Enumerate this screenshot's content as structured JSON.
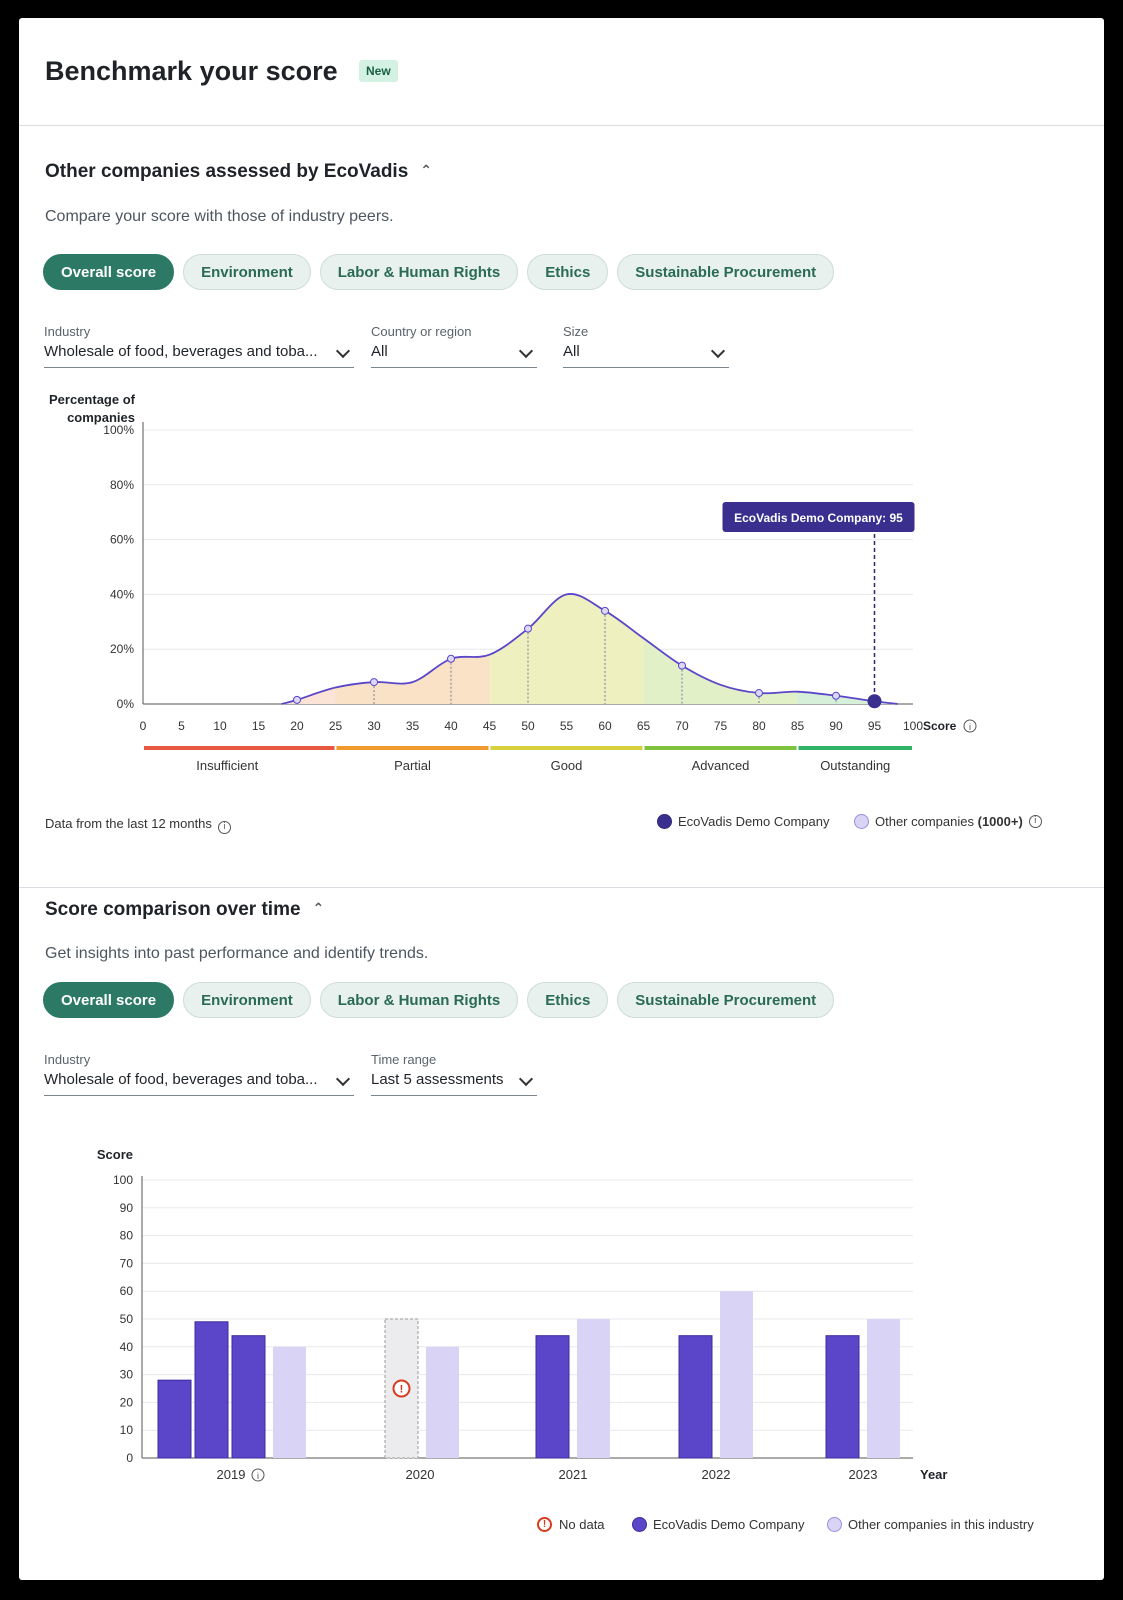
{
  "header": {
    "title": "Benchmark your score",
    "badge": "New"
  },
  "distribution_section": {
    "title": "Other companies assessed by EcoVadis",
    "subtitle": "Compare your score with those of industry peers.",
    "tabs": [
      "Overall score",
      "Environment",
      "Labor & Human Rights",
      "Ethics",
      "Sustainable Procurement"
    ],
    "active_tab": "Overall score",
    "filters": {
      "industry": {
        "label": "Industry",
        "value": "Wholesale of food, beverages and toba..."
      },
      "country": {
        "label": "Country or region",
        "value": "All"
      },
      "size": {
        "label": "Size",
        "value": "All"
      }
    },
    "data_note": "Data from the last 12 months",
    "legend": {
      "company": "EcoVadis Demo Company",
      "others_prefix": "Other companies",
      "others_count": "(1000+)"
    }
  },
  "time_section": {
    "title": "Score comparison over time",
    "subtitle": "Get insights into past performance and identify trends.",
    "tabs": [
      "Overall score",
      "Environment",
      "Labor & Human Rights",
      "Ethics",
      "Sustainable Procurement"
    ],
    "active_tab": "Overall score",
    "filters": {
      "industry": {
        "label": "Industry",
        "value": "Wholesale of food, beverages and toba..."
      },
      "time_range": {
        "label": "Time range",
        "value": "Last 5 assessments"
      }
    },
    "legend": {
      "no_data": "No data",
      "company": "EcoVadis Demo Company",
      "others": "Other companies in this industry"
    }
  },
  "chart_data": [
    {
      "type": "area",
      "ylabel": "Percentage of companies",
      "xlabel": "Score",
      "x_ticks": [
        0,
        5,
        10,
        15,
        20,
        25,
        30,
        35,
        40,
        45,
        50,
        55,
        60,
        65,
        70,
        75,
        80,
        85,
        90,
        95,
        100
      ],
      "y_ticks": [
        "0%",
        "20%",
        "40%",
        "60%",
        "80%",
        "100%"
      ],
      "xlim": [
        0,
        100
      ],
      "ylim": [
        0,
        100
      ],
      "grid": true,
      "curve": {
        "x": [
          18,
          20,
          25,
          30,
          35,
          40,
          45,
          50,
          55,
          60,
          65,
          70,
          75,
          80,
          85,
          90,
          95,
          98
        ],
        "y": [
          0,
          1.5,
          6,
          8,
          8,
          16.5,
          18,
          27.5,
          40,
          34,
          24,
          14,
          7,
          4,
          4.5,
          3,
          1,
          0
        ]
      },
      "markers": [
        {
          "x": 20,
          "y": 1.5
        },
        {
          "x": 30,
          "y": 8
        },
        {
          "x": 40,
          "y": 16.5
        },
        {
          "x": 50,
          "y": 27.5
        },
        {
          "x": 60,
          "y": 34
        },
        {
          "x": 70,
          "y": 14
        },
        {
          "x": 80,
          "y": 4
        },
        {
          "x": 90,
          "y": 3
        }
      ],
      "company_marker": {
        "x": 95,
        "y": 1,
        "label": "EcoVadis Demo Company: 95"
      },
      "bands": [
        {
          "name": "Insufficient",
          "from": 0,
          "to": 25,
          "color": "#e8573f",
          "fill": "#fbe3d6"
        },
        {
          "name": "Partial",
          "from": 25,
          "to": 45,
          "color": "#f09a2e",
          "fill": "#f9e2c6"
        },
        {
          "name": "Good",
          "from": 45,
          "to": 65,
          "color": "#d7d23b",
          "fill": "#eef0bf"
        },
        {
          "name": "Advanced",
          "from": 65,
          "to": 85,
          "color": "#7ec23e",
          "fill": "#e2f0c8"
        },
        {
          "name": "Outstanding",
          "from": 85,
          "to": 100,
          "color": "#2fb368",
          "fill": "#d6efd9"
        }
      ]
    },
    {
      "type": "bar",
      "ylabel": "Score",
      "xlabel": "Year",
      "categories": [
        "2019",
        "2020",
        "2021",
        "2022",
        "2023"
      ],
      "y_ticks": [
        0,
        10,
        20,
        30,
        40,
        50,
        60,
        70,
        80,
        90,
        100
      ],
      "ylim": [
        0,
        100
      ],
      "grid": true,
      "company_values": [
        [
          28,
          49,
          44
        ],
        [
          null
        ],
        [
          44
        ],
        [
          44
        ],
        [
          44
        ]
      ],
      "others_values": [
        40,
        40,
        50,
        60,
        50
      ],
      "no_data_category": "2020",
      "no_data_placeholder_value": 50,
      "colors": {
        "company": "#5b45c9",
        "others": "#d9d4f5"
      }
    }
  ]
}
